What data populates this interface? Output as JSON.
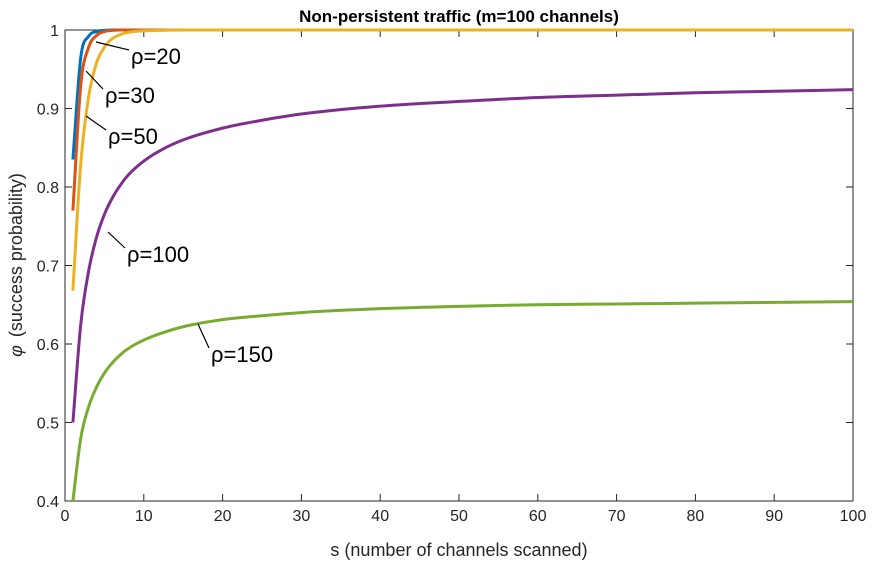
{
  "chart_data": {
    "type": "line",
    "title": "Non-persistent traffic (m=100 channels)",
    "xlabel": "s  (number of channels scanned)",
    "ylabel": "(success probability)",
    "ylabel_symbol": "φ",
    "xlim": [
      0,
      100
    ],
    "ylim": [
      0.4,
      1
    ],
    "x_ticks": [
      0,
      10,
      20,
      30,
      40,
      50,
      60,
      70,
      80,
      90,
      100
    ],
    "y_ticks": [
      0.4,
      0.5,
      0.6,
      0.7,
      0.8,
      0.9,
      1
    ],
    "y_tick_labels": [
      "0.4",
      "0.5",
      "0.6",
      "0.7",
      "0.8",
      "0.9",
      "1"
    ],
    "grid": false,
    "series": [
      {
        "name": "ρ=20",
        "color": "#0072BD",
        "x": [
          1,
          2,
          3,
          4,
          5,
          6,
          7,
          8,
          10,
          15,
          20,
          30,
          50,
          100
        ],
        "y": [
          0.835,
          0.965,
          0.992,
          0.998,
          0.9995,
          1.0,
          1.0,
          1.0,
          1.0,
          1.0,
          1.0,
          1.0,
          1.0,
          1.0
        ]
      },
      {
        "name": "ρ=30",
        "color": "#D95319",
        "x": [
          1,
          2,
          3,
          4,
          5,
          6,
          7,
          8,
          10,
          15,
          20,
          30,
          50,
          100
        ],
        "y": [
          0.77,
          0.93,
          0.978,
          0.993,
          0.998,
          0.9995,
          1.0,
          1.0,
          1.0,
          1.0,
          1.0,
          1.0,
          1.0,
          1.0
        ]
      },
      {
        "name": "ρ=50",
        "color": "#EDB120",
        "x": [
          1,
          2,
          3,
          4,
          5,
          6,
          7,
          8,
          10,
          12,
          15,
          20,
          30,
          50,
          100
        ],
        "y": [
          0.668,
          0.83,
          0.915,
          0.958,
          0.978,
          0.989,
          0.994,
          0.997,
          0.999,
          0.9995,
          1.0,
          1.0,
          1.0,
          1.0,
          1.0
        ]
      },
      {
        "name": "ρ=100",
        "color": "#7E2F8E",
        "x": [
          1,
          2,
          3,
          4,
          5,
          6,
          7,
          8,
          10,
          12,
          15,
          20,
          25,
          30,
          40,
          50,
          60,
          70,
          80,
          90,
          100
        ],
        "y": [
          0.5,
          0.625,
          0.693,
          0.736,
          0.765,
          0.786,
          0.802,
          0.815,
          0.833,
          0.846,
          0.86,
          0.875,
          0.885,
          0.893,
          0.903,
          0.909,
          0.914,
          0.917,
          0.92,
          0.922,
          0.924
        ]
      },
      {
        "name": "ρ=150",
        "color": "#77AC30",
        "x": [
          1,
          2,
          3,
          4,
          5,
          6,
          7,
          8,
          10,
          12,
          15,
          20,
          25,
          30,
          40,
          50,
          60,
          70,
          80,
          90,
          100
        ],
        "y": [
          0.4,
          0.48,
          0.52,
          0.545,
          0.563,
          0.576,
          0.586,
          0.594,
          0.605,
          0.613,
          0.622,
          0.631,
          0.636,
          0.64,
          0.645,
          0.648,
          0.65,
          0.651,
          0.652,
          0.653,
          0.654
        ]
      }
    ],
    "annotations": [
      {
        "text": "ρ=20",
        "series": 0
      },
      {
        "text": "ρ=30",
        "series": 1
      },
      {
        "text": "ρ=50",
        "series": 2
      },
      {
        "text": "ρ=100",
        "series": 3
      },
      {
        "text": "ρ=150",
        "series": 4
      }
    ]
  }
}
